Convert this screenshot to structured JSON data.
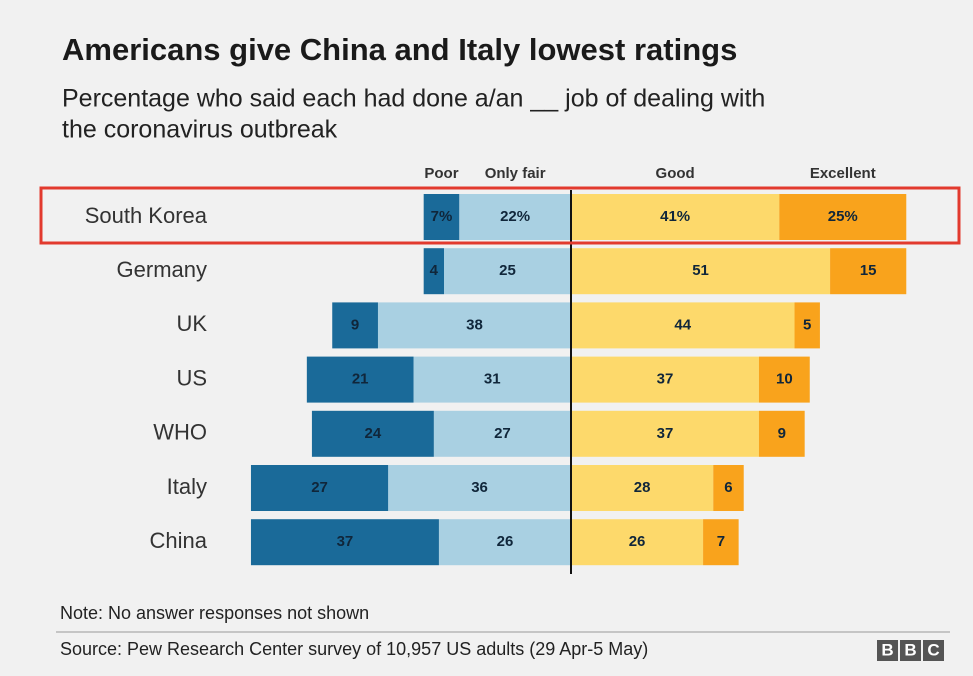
{
  "chart_data": {
    "type": "diverging-bar",
    "title": "Americans give China and Italy lowest ratings",
    "subtitle": [
      "Percentage who said each had done a/an __ job of dealing with",
      "the coronavirus outbreak"
    ],
    "categories": [
      "South Korea",
      "Germany",
      "UK",
      "US",
      "WHO",
      "Italy",
      "China"
    ],
    "series": [
      {
        "name": "Poor",
        "color": "#1a6a99",
        "side": "left",
        "values": [
          7,
          4,
          9,
          21,
          24,
          27,
          37
        ],
        "value_labels": [
          "7%",
          "4",
          "9",
          "21",
          "24",
          "27",
          "37"
        ]
      },
      {
        "name": "Only fair",
        "color": "#a9d0e2",
        "side": "left",
        "values": [
          22,
          25,
          38,
          31,
          27,
          36,
          26
        ],
        "value_labels": [
          "22%",
          "25",
          "38",
          "31",
          "27",
          "36",
          "26"
        ]
      },
      {
        "name": "Good",
        "color": "#fdd96b",
        "side": "right",
        "values": [
          41,
          51,
          44,
          37,
          37,
          28,
          26
        ],
        "value_labels": [
          "41%",
          "51",
          "44",
          "37",
          "37",
          "28",
          "26"
        ]
      },
      {
        "name": "Excellent",
        "color": "#f9a31c",
        "side": "right",
        "values": [
          25,
          15,
          5,
          10,
          9,
          6,
          7
        ],
        "value_labels": [
          "25%",
          "15",
          "5",
          "10",
          "9",
          "6",
          "7"
        ]
      }
    ],
    "note": "Note: No answer responses not shown",
    "source": "Source: Pew Research Center survey of 10,957 US adults (29 Apr-5 May)",
    "logo": [
      "B",
      "B",
      "C"
    ]
  }
}
